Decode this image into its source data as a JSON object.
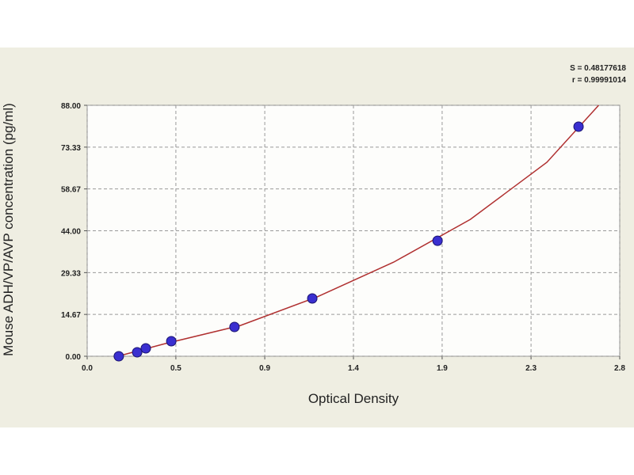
{
  "chart_data": {
    "type": "scatter",
    "x_label": "Optical Density",
    "y_label": "Mouse ADH/VP/AVP concentration (pg/ml)",
    "annotations": [
      "S = 0.48177618",
      "r = 0.99991014"
    ],
    "x": [
      0.165,
      0.261,
      0.306,
      0.439,
      0.769,
      1.175,
      1.829,
      2.565
    ],
    "values": [
      0,
      1.39,
      2.78,
      5.27,
      10.27,
      20.26,
      40.5,
      80.5
    ],
    "color": "#3a2fd0",
    "curve": {
      "color": "#b03030",
      "x": [
        0.16,
        0.4,
        0.8,
        1.2,
        1.6,
        2.0,
        2.4,
        2.67
      ],
      "values": [
        0,
        4.3,
        10.8,
        20.8,
        33,
        48,
        68,
        88
      ]
    },
    "xlim": [
      0,
      2.78
    ],
    "xticks": [
      {
        "value": 0,
        "label": "0.0"
      },
      {
        "value": 0.463,
        "label": "0.5"
      },
      {
        "value": 0.927,
        "label": "0.9"
      },
      {
        "value": 1.39,
        "label": "1.4"
      },
      {
        "value": 1.853,
        "label": "1.9"
      },
      {
        "value": 2.317,
        "label": "2.3"
      },
      {
        "value": 2.78,
        "label": "2.8"
      }
    ],
    "ylim": [
      0,
      88
    ],
    "yticks": [
      {
        "value": 0,
        "label": "0.00"
      },
      {
        "value": 14.67,
        "label": "14.67"
      },
      {
        "value": 29.33,
        "label": "29.33"
      },
      {
        "value": 44,
        "label": "44.00"
      },
      {
        "value": 58.67,
        "label": "58.67"
      },
      {
        "value": 73.33,
        "label": "73.33"
      },
      {
        "value": 88,
        "label": "88.00"
      }
    ],
    "grid": true
  }
}
